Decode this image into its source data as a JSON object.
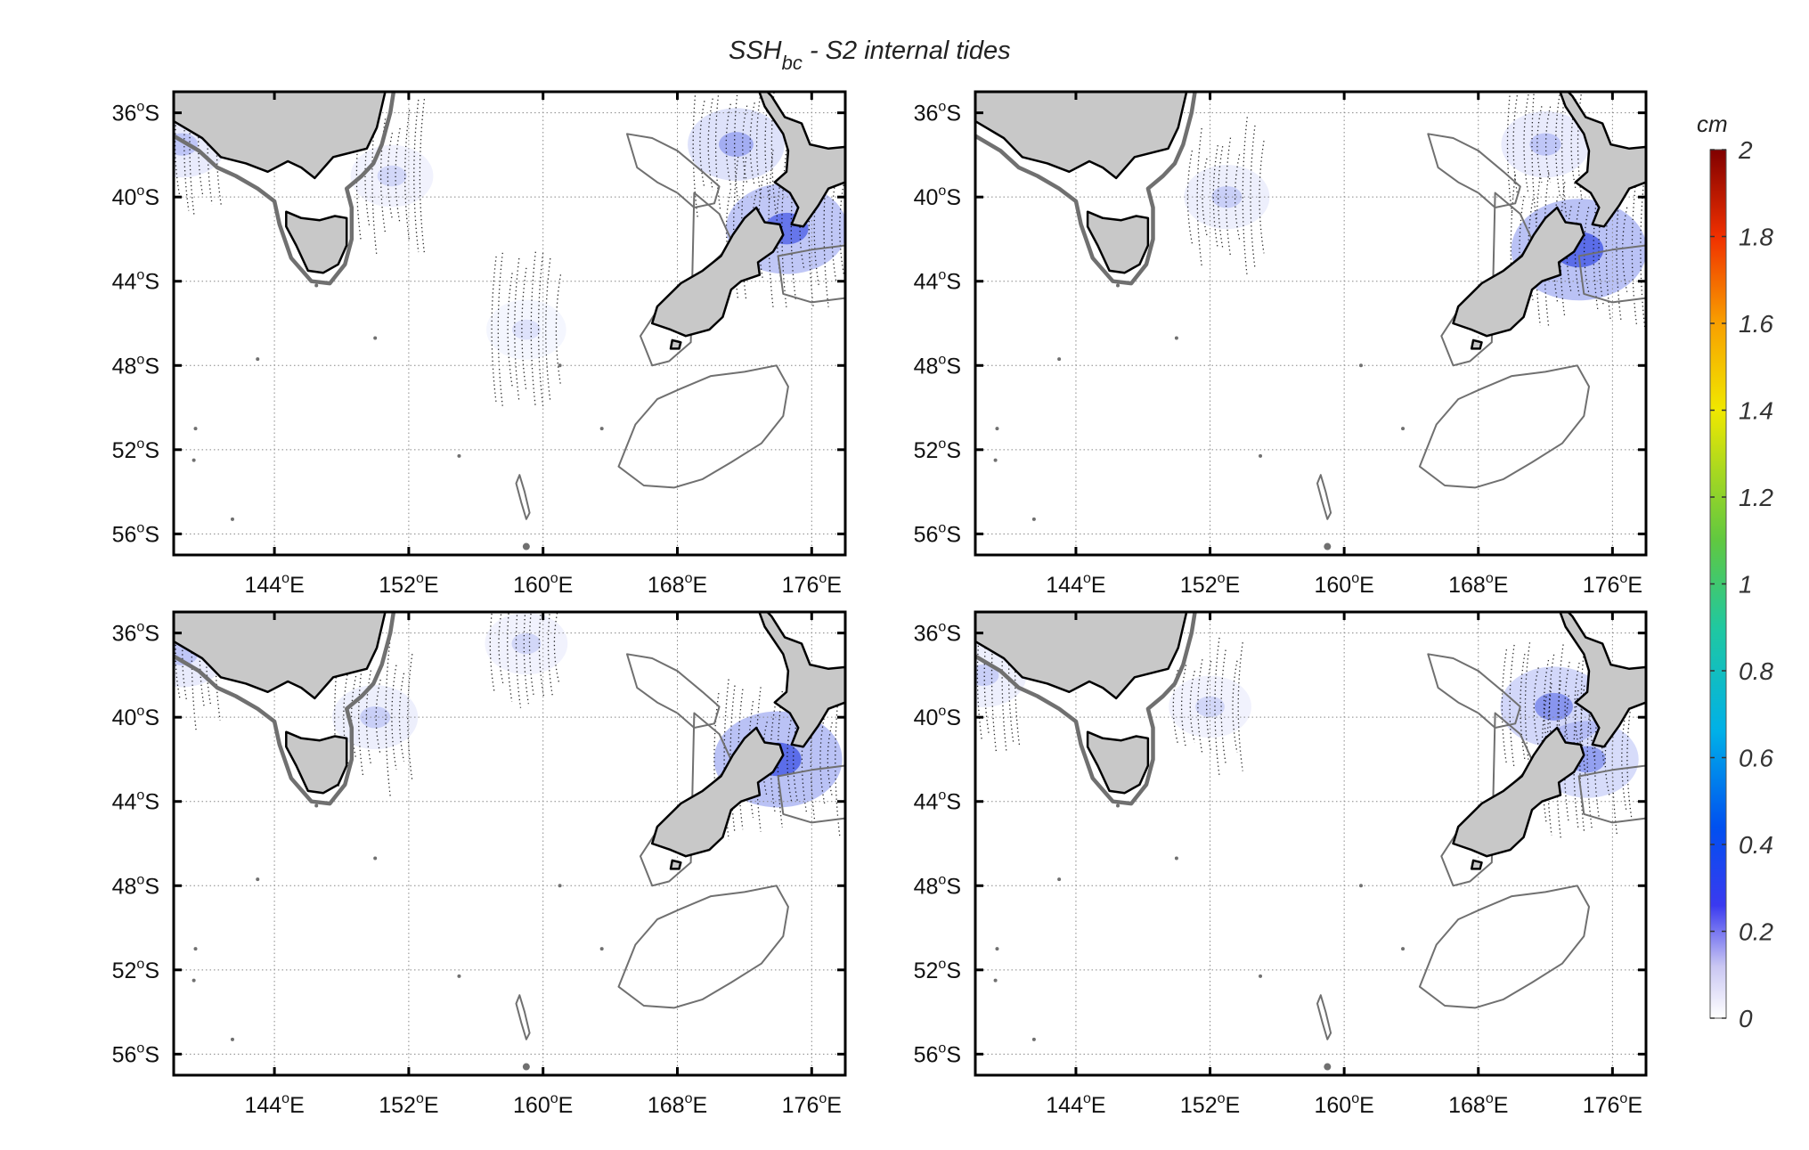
{
  "title": {
    "prefix": "SSH",
    "subscript": "bc",
    "suffix": " - S2 internal tides"
  },
  "axes": {
    "lat_ticks": [
      {
        "value": -36,
        "deg": "36",
        "hemi": "S"
      },
      {
        "value": -40,
        "deg": "40",
        "hemi": "S"
      },
      {
        "value": -44,
        "deg": "44",
        "hemi": "S"
      },
      {
        "value": -48,
        "deg": "48",
        "hemi": "S"
      },
      {
        "value": -52,
        "deg": "52",
        "hemi": "S"
      },
      {
        "value": -56,
        "deg": "56",
        "hemi": "S"
      }
    ],
    "lon_ticks": [
      {
        "value": 144,
        "deg": "144",
        "hemi": "E"
      },
      {
        "value": 152,
        "deg": "152",
        "hemi": "E"
      },
      {
        "value": 160,
        "deg": "160",
        "hemi": "E"
      },
      {
        "value": 168,
        "deg": "168",
        "hemi": "E"
      },
      {
        "value": 176,
        "deg": "176",
        "hemi": "E"
      }
    ],
    "lon_range": [
      138,
      178
    ],
    "lat_range": [
      -57,
      -35
    ],
    "grid": "dotted"
  },
  "colorbar": {
    "unit": "cm",
    "range": [
      0,
      2
    ],
    "ticks": [
      "0",
      "0.2",
      "0.4",
      "0.6",
      "0.8",
      "1",
      "1.2",
      "1.4",
      "1.6",
      "1.8",
      "2"
    ],
    "colormap": "white-to-blue-to-green-to-yellow-to-red"
  },
  "colors": {
    "land": "#c8c8c8",
    "coast": "#000000",
    "isobath": "#707070",
    "wave": "#4a5ee6",
    "grid": "#888888"
  },
  "panels": [
    {
      "id": "top-left",
      "hotspots": [
        {
          "lon": 174.5,
          "lat": -41.5,
          "amp": 0.35
        },
        {
          "lon": 171.5,
          "lat": -37.5,
          "amp": 0.18
        },
        {
          "lon": 151.0,
          "lat": -39.0,
          "amp": 0.08
        },
        {
          "lon": 159.0,
          "lat": -46.3,
          "amp": 0.06
        },
        {
          "lon": 138.5,
          "lat": -37.5,
          "amp": 0.12
        }
      ]
    },
    {
      "id": "top-right",
      "hotspots": [
        {
          "lon": 174.0,
          "lat": -42.5,
          "amp": 0.45
        },
        {
          "lon": 172.0,
          "lat": -37.5,
          "amp": 0.12
        },
        {
          "lon": 153.0,
          "lat": -40.0,
          "amp": 0.1
        }
      ]
    },
    {
      "id": "bottom-left",
      "hotspots": [
        {
          "lon": 174.0,
          "lat": -42.0,
          "amp": 0.4
        },
        {
          "lon": 150.0,
          "lat": -40.0,
          "amp": 0.1
        },
        {
          "lon": 159.0,
          "lat": -36.5,
          "amp": 0.08
        },
        {
          "lon": 138.5,
          "lat": -37.0,
          "amp": 0.12
        }
      ]
    },
    {
      "id": "bottom-right",
      "hotspots": [
        {
          "lon": 172.5,
          "lat": -39.5,
          "amp": 0.25
        },
        {
          "lon": 174.5,
          "lat": -42.0,
          "amp": 0.22
        },
        {
          "lon": 152.0,
          "lat": -39.5,
          "amp": 0.08
        },
        {
          "lon": 138.5,
          "lat": -38.0,
          "amp": 0.1
        }
      ]
    }
  ]
}
